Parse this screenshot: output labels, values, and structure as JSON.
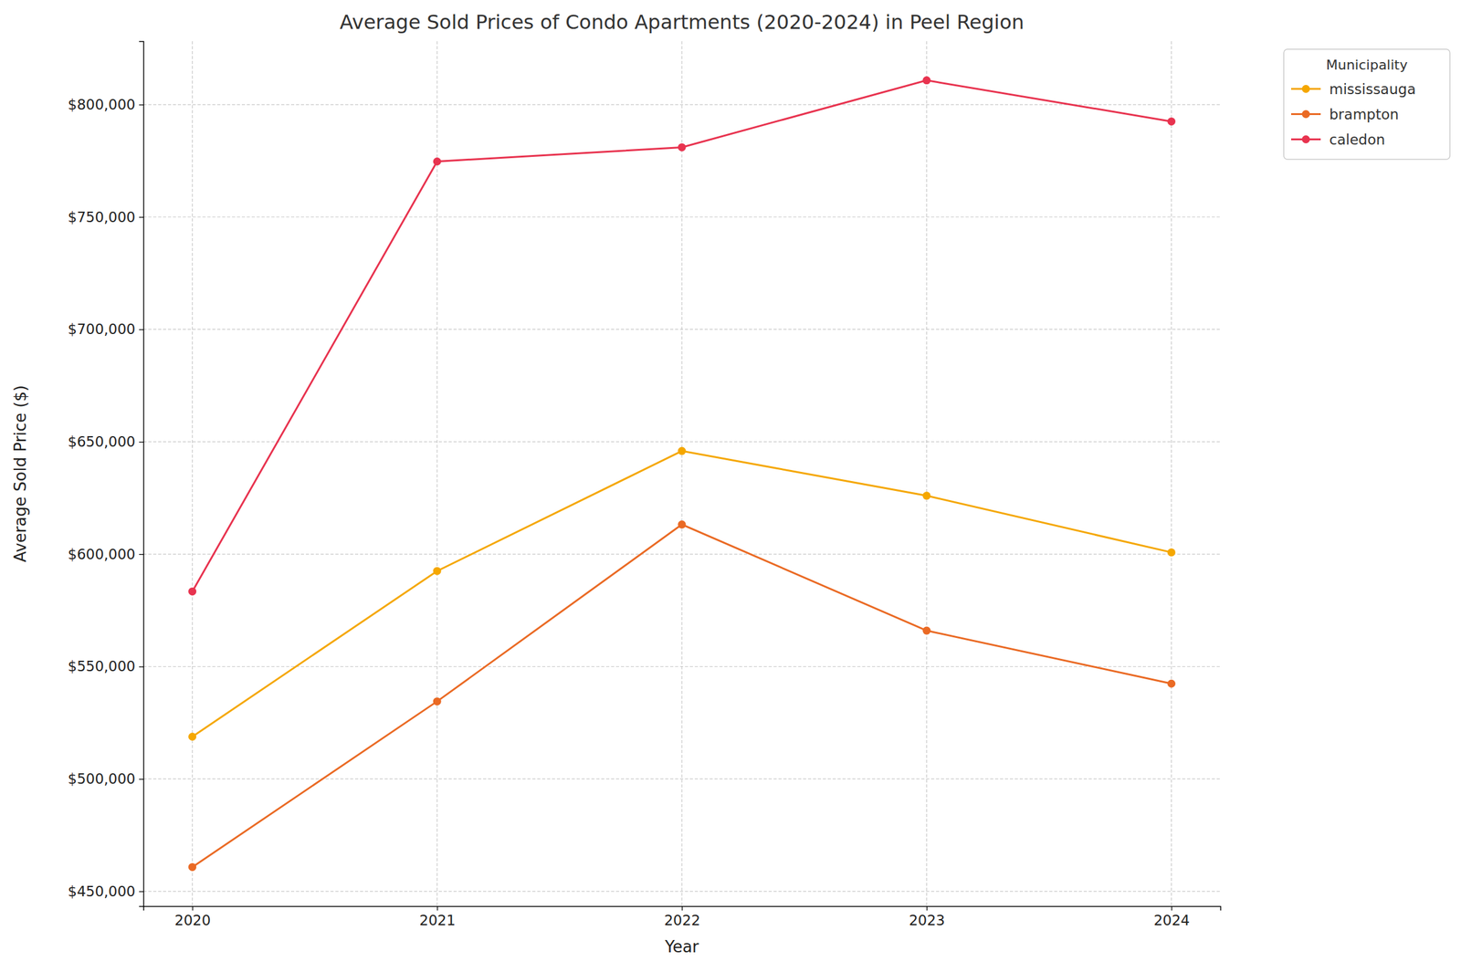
{
  "chart_data": {
    "type": "line",
    "title": "Average Sold Prices of Condo Apartments (2020-2024) in Peel Region",
    "x_label": "Year",
    "y_label": "Average Sold Price ($)",
    "legend_title": "Municipality",
    "x": [
      2020,
      2021,
      2022,
      2023,
      2024
    ],
    "series": [
      {
        "name": "mississauga",
        "color": "#f5a700",
        "marker": "circle",
        "line_style": "solid",
        "values": [
          518800,
          592500,
          645900,
          626000,
          600800
        ]
      },
      {
        "name": "brampton",
        "color": "#ea6a24",
        "marker": "circle",
        "line_style": "solid",
        "values": [
          460800,
          534500,
          613200,
          566000,
          542400
        ]
      },
      {
        "name": "caledon",
        "color": "#e8334f",
        "marker": "circle",
        "line_style": "solid",
        "values": [
          583400,
          774700,
          781000,
          810800,
          792500
        ]
      }
    ],
    "xlim": [
      2019.8,
      2024.2
    ],
    "xticks": [
      2020,
      2021,
      2022,
      2023,
      2024
    ],
    "ylim": [
      443400,
      828200
    ],
    "yticks": [
      {
        "value": 450000,
        "label": "$450,000"
      },
      {
        "value": 500000,
        "label": "$500,000"
      },
      {
        "value": 550000,
        "label": "$550,000"
      },
      {
        "value": 600000,
        "label": "$600,000"
      },
      {
        "value": 650000,
        "label": "$650,000"
      },
      {
        "value": 700000,
        "label": "$700,000"
      },
      {
        "value": 750000,
        "label": "$750,000"
      },
      {
        "value": 800000,
        "label": "$800,000"
      }
    ],
    "grid": true,
    "legend": "right"
  }
}
